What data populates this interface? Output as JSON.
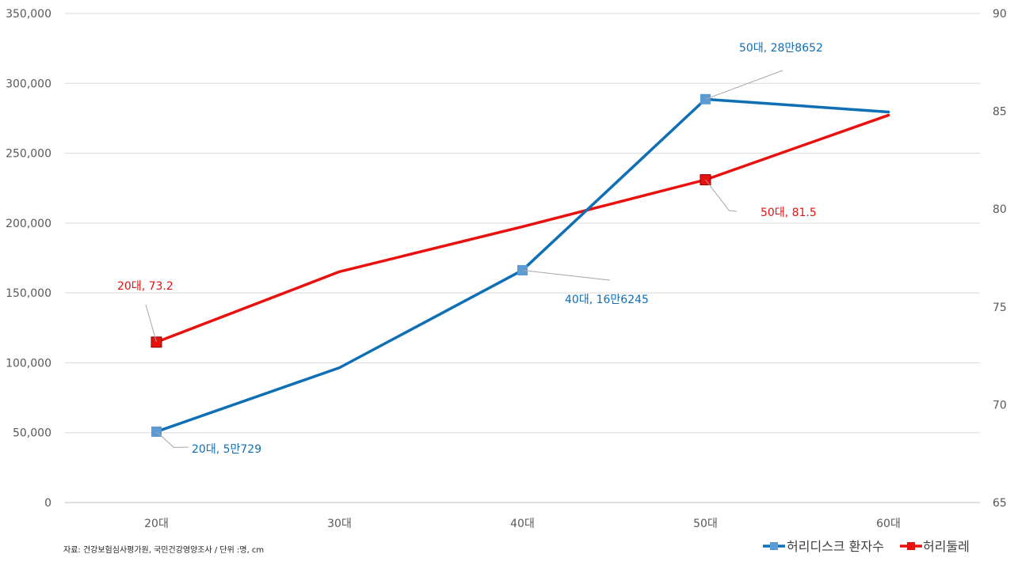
{
  "chart_data": {
    "type": "line",
    "categories": [
      "20대",
      "30대",
      "40대",
      "50대",
      "60대"
    ],
    "series": [
      {
        "name": "허리디스크 환자수",
        "axis": "left",
        "color": "#0F6FB5",
        "marker_color": "#5B9BD5",
        "values": [
          50729,
          96500,
          166245,
          288652,
          279500
        ]
      },
      {
        "name": "허리둘레",
        "axis": "right",
        "color": "#E8110F",
        "marker_color": "#E8110F",
        "values": [
          73.2,
          76.8,
          79.1,
          81.5,
          84.8
        ]
      }
    ],
    "y_left": {
      "min": 0,
      "max": 350000,
      "ticks": [
        0,
        50000,
        100000,
        150000,
        200000,
        250000,
        300000,
        350000
      ],
      "tick_labels": [
        "0",
        "50,000",
        "100,000",
        "150,000",
        "200,000",
        "250,000",
        "300,000",
        "350,000"
      ]
    },
    "y_right": {
      "min": 65,
      "max": 90,
      "ticks": [
        65,
        70,
        75,
        80,
        85,
        90
      ],
      "tick_labels": [
        "65",
        "70",
        "75",
        "80",
        "85",
        "90"
      ]
    },
    "grid": true,
    "legend_position": "bottom-right",
    "annotations": [
      {
        "series": 0,
        "index": 0,
        "text": "20대, 5만729",
        "color": "#0F6FB5"
      },
      {
        "series": 0,
        "index": 2,
        "text": "40대, 16만6245",
        "color": "#0F6FB5"
      },
      {
        "series": 0,
        "index": 3,
        "text": "50대, 28만8652",
        "color": "#0F6FB5"
      },
      {
        "series": 1,
        "index": 0,
        "text": "20대, 73.2",
        "color": "#E8110F"
      },
      {
        "series": 1,
        "index": 3,
        "text": "50대, 81.5",
        "color": "#E8110F"
      }
    ],
    "source_note": "자료: 건강보험심사평가원, 국민건강영양조사 / 단위 :명, cm"
  }
}
